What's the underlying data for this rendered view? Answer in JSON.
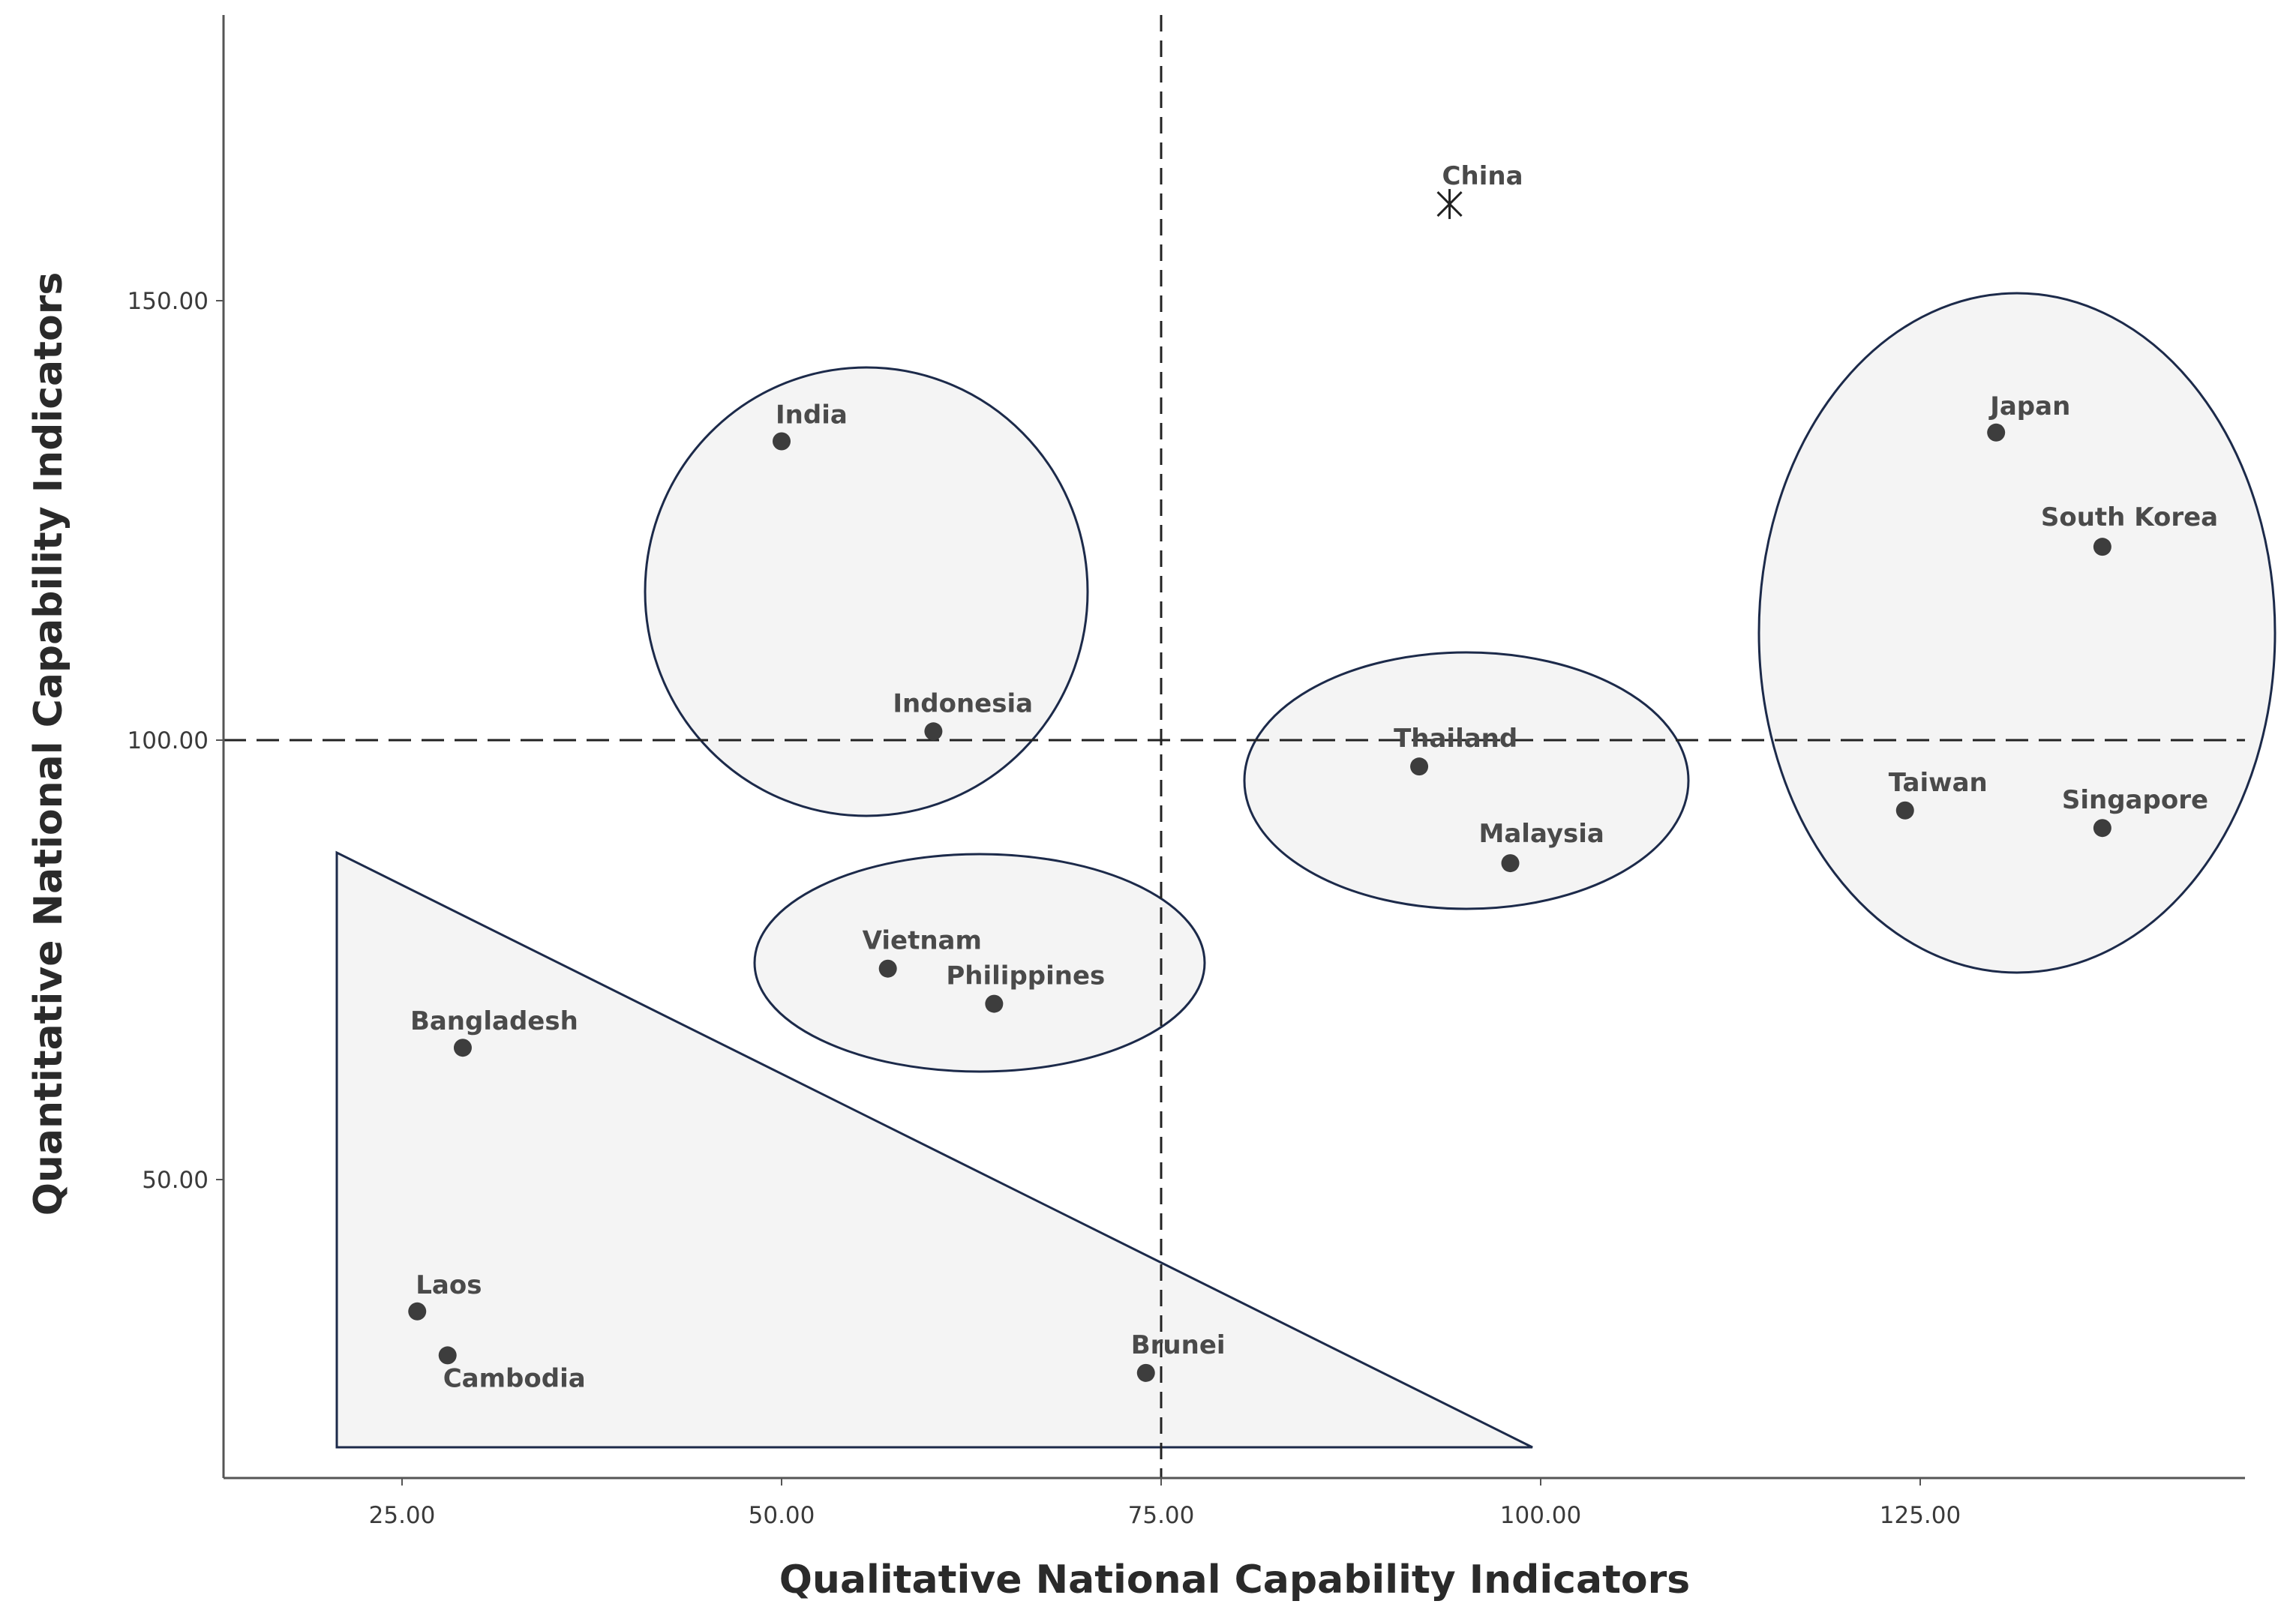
{
  "chart_data": {
    "type": "scatter",
    "title": "",
    "xlabel": "Qualitative National Capability Indicators",
    "ylabel": "Quantitative National Capability Indicators",
    "xlim": [
      12.5,
      146
    ],
    "ylim": [
      16.5,
      183
    ],
    "x_ticks": [
      25,
      50,
      75,
      100,
      125
    ],
    "x_tick_labels": [
      "25.00",
      "50.00",
      "75.00",
      "100.00",
      "125.00"
    ],
    "y_ticks": [
      50,
      100,
      150
    ],
    "y_tick_labels": [
      "50.00",
      "100.00",
      "150.00"
    ],
    "reference_lines": {
      "x": 75,
      "y": 100
    },
    "points": [
      {
        "name": "China",
        "x": 94,
        "y": 161,
        "marker": "asterisk"
      },
      {
        "name": "India",
        "x": 50,
        "y": 134,
        "marker": "dot"
      },
      {
        "name": "Indonesia",
        "x": 60,
        "y": 101,
        "marker": "dot"
      },
      {
        "name": "Thailand",
        "x": 92,
        "y": 97,
        "marker": "dot"
      },
      {
        "name": "Malaysia",
        "x": 98,
        "y": 86,
        "marker": "dot"
      },
      {
        "name": "Japan",
        "x": 130,
        "y": 135,
        "marker": "dot"
      },
      {
        "name": "South Korea",
        "x": 137,
        "y": 122,
        "marker": "dot"
      },
      {
        "name": "Taiwan",
        "x": 124,
        "y": 92,
        "marker": "dot"
      },
      {
        "name": "Singapore",
        "x": 137,
        "y": 90,
        "marker": "dot"
      },
      {
        "name": "Vietnam",
        "x": 57,
        "y": 74,
        "marker": "dot"
      },
      {
        "name": "Philippines",
        "x": 64,
        "y": 70,
        "marker": "dot"
      },
      {
        "name": "Bangladesh",
        "x": 29,
        "y": 65,
        "marker": "dot"
      },
      {
        "name": "Laos",
        "x": 26,
        "y": 35,
        "marker": "dot"
      },
      {
        "name": "Cambodia",
        "x": 28,
        "y": 30,
        "marker": "dot"
      },
      {
        "name": "Brunei",
        "x": 74,
        "y": 28,
        "marker": "dot"
      }
    ],
    "groups": [
      {
        "shape": "ellipse",
        "members": [
          "India",
          "Indonesia"
        ]
      },
      {
        "shape": "ellipse",
        "members": [
          "Thailand",
          "Malaysia"
        ]
      },
      {
        "shape": "ellipse",
        "members": [
          "Japan",
          "South Korea",
          "Taiwan",
          "Singapore"
        ]
      },
      {
        "shape": "ellipse",
        "members": [
          "Vietnam",
          "Philippines"
        ]
      },
      {
        "shape": "triangle",
        "members": [
          "Bangladesh",
          "Laos",
          "Cambodia",
          "Brunei"
        ]
      }
    ]
  }
}
